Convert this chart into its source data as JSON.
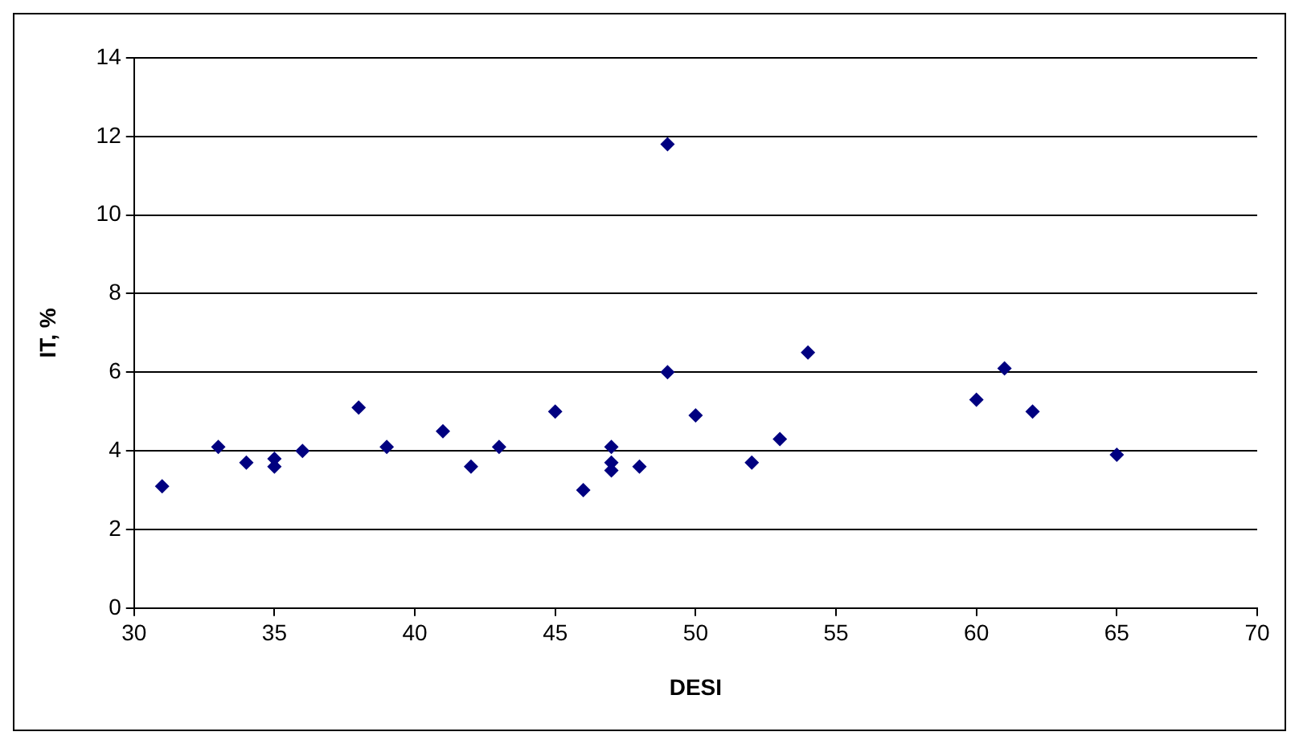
{
  "chart_data": {
    "type": "scatter",
    "xlabel": "DESI",
    "ylabel": "IT, %",
    "x": [
      31,
      33,
      34,
      35,
      35,
      36,
      38,
      39,
      41,
      42,
      43,
      45,
      46,
      47,
      47,
      47,
      48,
      49,
      49,
      50,
      52,
      53,
      54,
      60,
      61,
      62,
      65
    ],
    "series": [
      {
        "color": "#000080",
        "values": [
          3.1,
          4.1,
          3.7,
          3.8,
          3.6,
          4.0,
          5.1,
          4.1,
          4.5,
          3.6,
          4.1,
          5.0,
          3.0,
          4.1,
          3.7,
          3.5,
          3.6,
          11.8,
          6.0,
          4.9,
          3.7,
          4.3,
          6.5,
          5.3,
          6.1,
          5.0,
          3.9
        ]
      }
    ],
    "xlim": [
      30,
      70
    ],
    "xticks": [
      30,
      35,
      40,
      45,
      50,
      55,
      60,
      65,
      70
    ],
    "ylim": [
      0,
      14
    ],
    "yticks": [
      0,
      2,
      4,
      6,
      8,
      10,
      12,
      14
    ],
    "grid": "y",
    "legend": false,
    "marker": "diamond"
  }
}
